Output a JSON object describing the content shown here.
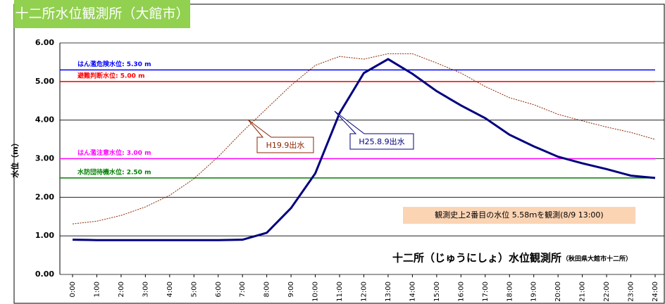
{
  "chart_data": {
    "type": "line",
    "title": "十二所水位観測所（大館市）",
    "y_label": "水位（m）",
    "station_label": "十二所（じゅうにしょ）水位観測所",
    "station_sub": "（秋田県大館市十二所）",
    "note": "観測史上2番目の水位 5.58ｍを観測(8/9 13:00)",
    "categories": [
      "0:00",
      "1:00",
      "2:00",
      "3:00",
      "4:00",
      "5:00",
      "6:00",
      "7:00",
      "8:00",
      "9:00",
      "10:00",
      "11:00",
      "12:00",
      "13:00",
      "14:00",
      "15:00",
      "16:00",
      "17:00",
      "18:00",
      "19:00",
      "20:00",
      "21:00",
      "22:00",
      "23:00",
      "24:00"
    ],
    "series": [
      {
        "name": "H19.9出水",
        "color": "#8b2500",
        "dashed": true,
        "values": [
          1.31,
          1.38,
          1.53,
          1.75,
          2.05,
          2.48,
          3.05,
          3.7,
          4.3,
          4.9,
          5.42,
          5.65,
          5.58,
          5.72,
          5.72,
          5.48,
          5.22,
          4.87,
          4.58,
          4.4,
          4.15,
          3.98,
          3.82,
          3.68,
          3.5
        ]
      },
      {
        "name": "H25.8.9出水",
        "color": "#00007f",
        "dashed": false,
        "values": [
          0.9,
          0.89,
          0.89,
          0.89,
          0.89,
          0.89,
          0.89,
          0.9,
          1.08,
          1.72,
          2.62,
          4.18,
          5.22,
          5.58,
          5.2,
          4.75,
          4.38,
          4.05,
          3.62,
          3.32,
          3.05,
          2.88,
          2.73,
          2.56,
          2.5
        ]
      }
    ],
    "levels": [
      {
        "label": "はん濫危険水位: 5.30 m",
        "value": 5.3,
        "color": "#0000ff"
      },
      {
        "label": "避難判断水位: 5.00 m",
        "value": 5.0,
        "color": "#ff0000"
      },
      {
        "label": "はん濫注意水位: 3.00 m",
        "value": 3.0,
        "color": "#ff00ff"
      },
      {
        "label": "水防団待機水位: 2.50 m",
        "value": 2.5,
        "color": "#007f00"
      }
    ],
    "ylim": [
      0,
      6
    ],
    "yticks": [
      {
        "value": 0,
        "label": "0.00"
      },
      {
        "value": 1,
        "label": "1.00"
      },
      {
        "value": 2,
        "label": "2.00"
      },
      {
        "value": 3,
        "label": "3.00"
      },
      {
        "value": 4,
        "label": "4.00"
      },
      {
        "value": 5,
        "label": "5.00"
      },
      {
        "value": 6,
        "label": "6.00"
      }
    ],
    "grid": true
  }
}
